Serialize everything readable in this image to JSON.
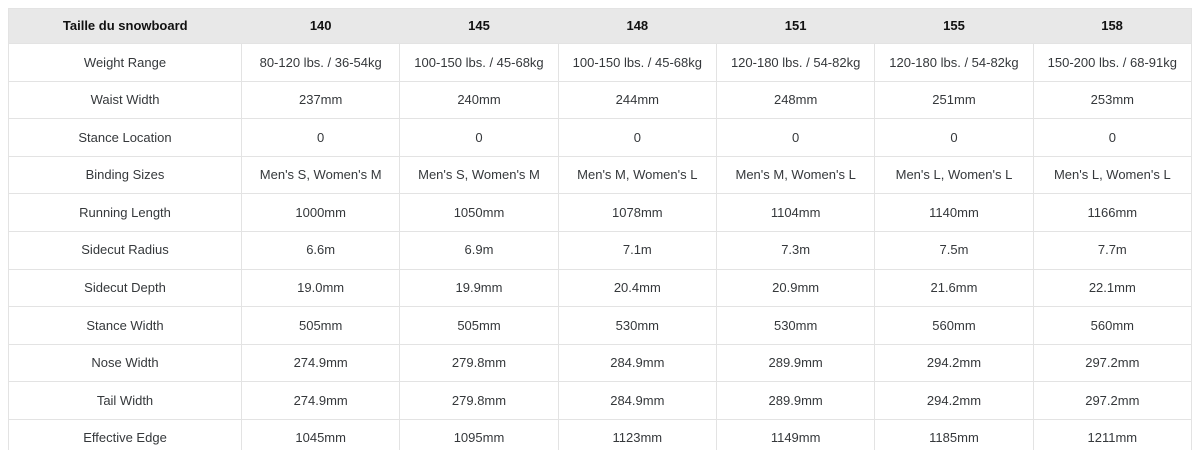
{
  "colors": {
    "header_bg": "#e8e8e8",
    "border": "#e3e3e3",
    "header_text": "#111111",
    "body_text": "#35383b"
  },
  "table": {
    "header": [
      "Taille du snowboard",
      "140",
      "145",
      "148",
      "151",
      "155",
      "158"
    ],
    "rows": [
      {
        "label": "Weight Range",
        "values": [
          "80-120 lbs. / 36-54kg",
          "100-150 lbs. / 45-68kg",
          "100-150 lbs. / 45-68kg",
          "120-180 lbs. / 54-82kg",
          "120-180 lbs. / 54-82kg",
          "150-200 lbs. / 68-91kg"
        ]
      },
      {
        "label": "Waist Width",
        "values": [
          "237mm",
          "240mm",
          "244mm",
          "248mm",
          "251mm",
          "253mm"
        ]
      },
      {
        "label": "Stance Location",
        "values": [
          "0",
          "0",
          "0",
          "0",
          "0",
          "0"
        ]
      },
      {
        "label": "Binding Sizes",
        "values": [
          "Men's S, Women's M",
          "Men's S, Women's M",
          "Men's M, Women's L",
          "Men's M, Women's L",
          "Men's L, Women's L",
          "Men's L, Women's L"
        ]
      },
      {
        "label": "Running Length",
        "values": [
          "1000mm",
          "1050mm",
          "1078mm",
          "1104mm",
          "1140mm",
          "1166mm"
        ]
      },
      {
        "label": "Sidecut Radius",
        "values": [
          "6.6m",
          "6.9m",
          "7.1m",
          "7.3m",
          "7.5m",
          "7.7m"
        ]
      },
      {
        "label": "Sidecut Depth",
        "values": [
          "19.0mm",
          "19.9mm",
          "20.4mm",
          "20.9mm",
          "21.6mm",
          "22.1mm"
        ]
      },
      {
        "label": "Stance Width",
        "values": [
          "505mm",
          "505mm",
          "530mm",
          "530mm",
          "560mm",
          "560mm"
        ]
      },
      {
        "label": "Nose Width",
        "values": [
          "274.9mm",
          "279.8mm",
          "284.9mm",
          "289.9mm",
          "294.2mm",
          "297.2mm"
        ]
      },
      {
        "label": "Tail Width",
        "values": [
          "274.9mm",
          "279.8mm",
          "284.9mm",
          "289.9mm",
          "294.2mm",
          "297.2mm"
        ]
      },
      {
        "label": "Effective Edge",
        "values": [
          "1045mm",
          "1095mm",
          "1123mm",
          "1149mm",
          "1185mm",
          "1211mm"
        ]
      }
    ]
  }
}
